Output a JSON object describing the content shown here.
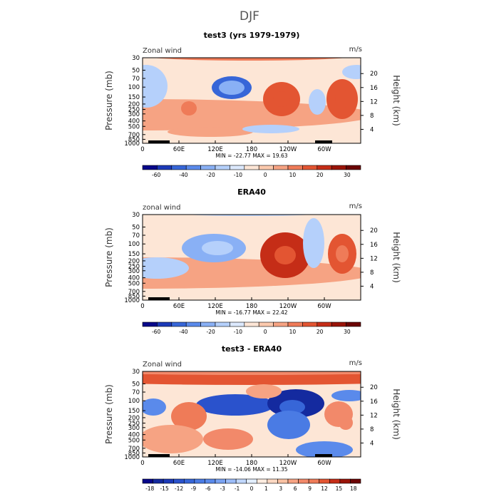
{
  "figure_title": "DJF",
  "chart_data": [
    {
      "type": "heatmap",
      "title": "test3 (yrs 1979-1979)",
      "left_label": "Zonal wind",
      "right_label": "m/s",
      "xlabel": "",
      "ylabel": "Pressure (mb)",
      "y2label": "Height (km)",
      "x_ticks": [
        "0",
        "60E",
        "120E",
        "180",
        "120W",
        "60W"
      ],
      "y_ticks": [
        "30",
        "50",
        "70",
        "100",
        "150",
        "200",
        "250",
        "300",
        "400",
        "500",
        "700",
        "850",
        "1000"
      ],
      "y2_ticks": [
        "20",
        "16",
        "12",
        "8",
        "4"
      ],
      "stats": {
        "min": -22.77,
        "max": 19.63
      },
      "stats_text": "MIN = -22.77  MAX =  19.63",
      "colorbar_ticks": [
        "-60",
        "-40",
        "-20",
        "-10",
        "0",
        "10",
        "20",
        "30"
      ],
      "colorbar_colors": [
        "#08088a",
        "#1c3ab8",
        "#3766d8",
        "#5a8aeb",
        "#89b0f5",
        "#b5d0fb",
        "#dce9fd",
        "#fde6d6",
        "#fbc9ad",
        "#f6a383",
        "#ef7b58",
        "#e35532",
        "#c52d17",
        "#9a1409",
        "#6b0404"
      ]
    },
    {
      "type": "heatmap",
      "title": "ERA40",
      "left_label": "zonal wind",
      "right_label": "m/s",
      "xlabel": "",
      "ylabel": "Pressure (mb)",
      "y2label": "Height (km)",
      "x_ticks": [
        "0",
        "60E",
        "120E",
        "180",
        "120W",
        "60W"
      ],
      "y_ticks": [
        "30",
        "50",
        "70",
        "100",
        "150",
        "200",
        "250",
        "300",
        "400",
        "500",
        "700",
        "850",
        "1000"
      ],
      "y2_ticks": [
        "20",
        "16",
        "12",
        "8",
        "4"
      ],
      "stats": {
        "min": -16.77,
        "max": 22.42
      },
      "stats_text": "MIN = -16.77  MAX =  22.42",
      "colorbar_ticks": [
        "-60",
        "-40",
        "-20",
        "-10",
        "0",
        "10",
        "20",
        "30"
      ],
      "colorbar_colors": [
        "#08088a",
        "#1c3ab8",
        "#3766d8",
        "#5a8aeb",
        "#89b0f5",
        "#b5d0fb",
        "#dce9fd",
        "#fde6d6",
        "#fbc9ad",
        "#f6a383",
        "#ef7b58",
        "#e35532",
        "#c52d17",
        "#9a1409",
        "#6b0404"
      ]
    },
    {
      "type": "heatmap",
      "title": "test3 - ERA40",
      "left_label": "Zonal wind",
      "right_label": "m/s",
      "xlabel": "",
      "ylabel": "Pressure (mb)",
      "y2label": "Height (km)",
      "x_ticks": [
        "0",
        "60E",
        "120E",
        "180",
        "120W",
        "60W"
      ],
      "y_ticks": [
        "30",
        "50",
        "70",
        "100",
        "150",
        "200",
        "250",
        "300",
        "400",
        "500",
        "700",
        "850",
        "1000"
      ],
      "y2_ticks": [
        "20",
        "16",
        "12",
        "8",
        "4"
      ],
      "stats": {
        "min": -14.06,
        "max": 11.35
      },
      "stats_text": "MIN = -14.06  MAX =  11.35",
      "colorbar_ticks": [
        "-18",
        "-15",
        "-12",
        "-9",
        "-6",
        "-3",
        "-1",
        "0",
        "1",
        "3",
        "6",
        "9",
        "12",
        "15",
        "18"
      ],
      "colorbar_colors": [
        "#08088a",
        "#142a9f",
        "#1c3ab8",
        "#2a52cc",
        "#3766d8",
        "#4a7be4",
        "#5a8aeb",
        "#7aa3f2",
        "#9cbcf8",
        "#c0d7fc",
        "#e2eefe",
        "#fdece0",
        "#fbd8c2",
        "#f9c1a3",
        "#f6a383",
        "#f2896a",
        "#ef7b58",
        "#e35532",
        "#c52d17",
        "#9a1409",
        "#6b0404"
      ]
    }
  ]
}
